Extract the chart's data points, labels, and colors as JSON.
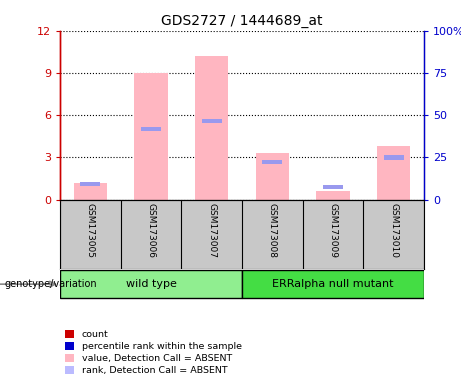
{
  "title": "GDS2727 / 1444689_at",
  "samples": [
    "GSM173005",
    "GSM173006",
    "GSM173007",
    "GSM173008",
    "GSM173009",
    "GSM173010"
  ],
  "pink_bar_heights": [
    1.2,
    9.0,
    10.2,
    3.3,
    0.6,
    3.8
  ],
  "blue_bar_heights": [
    1.1,
    5.0,
    5.6,
    2.7,
    0.9,
    3.0
  ],
  "ylim_left": [
    0,
    12
  ],
  "ylim_right": [
    0,
    100
  ],
  "yticks_left": [
    0,
    3,
    6,
    9,
    12
  ],
  "yticks_right": [
    0,
    25,
    50,
    75,
    100
  ],
  "ytick_labels_left": [
    "0",
    "3",
    "6",
    "9",
    "12"
  ],
  "ytick_labels_right": [
    "0",
    "25",
    "50",
    "75",
    "100%"
  ],
  "left_axis_color": "#CC0000",
  "right_axis_color": "#0000CC",
  "pink_color": "#FFB6C1",
  "blue_bar_color": "#9999EE",
  "bg_sample_box": "#C8C8C8",
  "green_wt": "#90EE90",
  "green_err": "#44DD44",
  "genotype_label": "genotype/variation",
  "legend_items": [
    {
      "color": "#CC0000",
      "label": "count"
    },
    {
      "color": "#0000CC",
      "label": "percentile rank within the sample"
    },
    {
      "color": "#FFB6C1",
      "label": "value, Detection Call = ABSENT"
    },
    {
      "color": "#BBBBFF",
      "label": "rank, Detection Call = ABSENT"
    }
  ],
  "bar_width": 0.55
}
